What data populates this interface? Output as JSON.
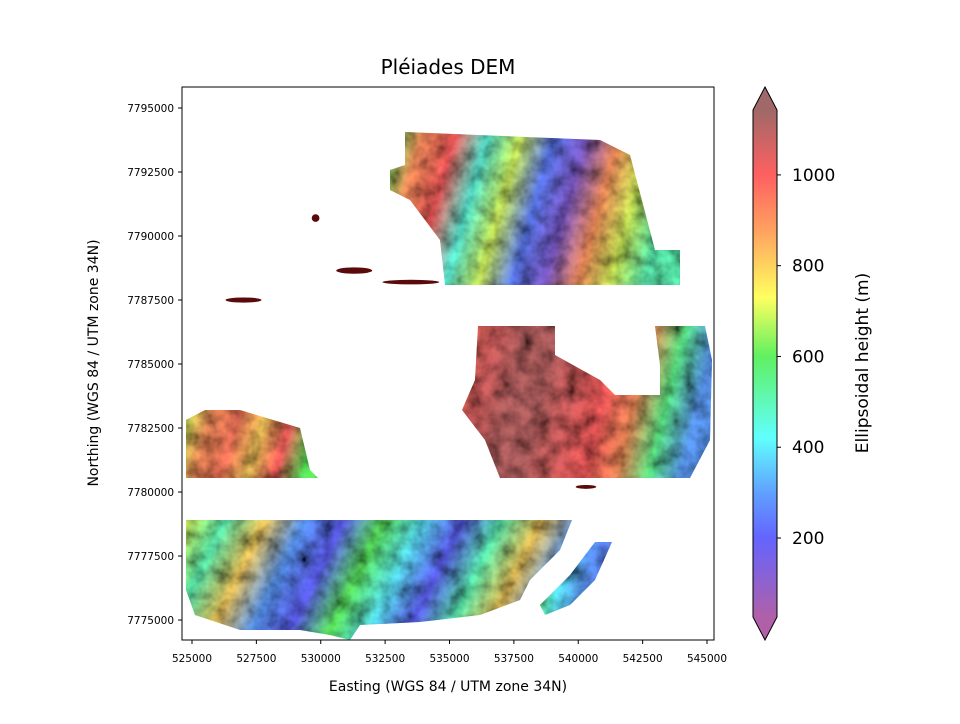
{
  "chart_data": {
    "type": "heatmap",
    "title": "Pléiades DEM",
    "xlabel": "Easting (WGS 84 / UTM zone 34N)",
    "ylabel": "Northing (WGS 84 / UTM zone 34N)",
    "xlim": [
      524612,
      545272
    ],
    "ylim": [
      7774220,
      7795820
    ],
    "xticks": [
      525000,
      527500,
      530000,
      532500,
      535000,
      537500,
      540000,
      542500,
      545000
    ],
    "yticks": [
      7775000,
      7777500,
      7780000,
      7782500,
      7785000,
      7787500,
      7790000,
      7792500,
      7795000
    ],
    "grid": false,
    "colorbar": {
      "label": "Ellipsoidal height (m)",
      "range": [
        26,
        1143
      ],
      "extend": "both",
      "ticks": [
        200,
        400,
        600,
        800,
        1000
      ],
      "colormap": [
        {
          "value": 26,
          "color": "#b060a8"
        },
        {
          "value": 200,
          "color": "#6464ff"
        },
        {
          "value": 300,
          "color": "#60a0ff"
        },
        {
          "value": 420,
          "color": "#60ffff"
        },
        {
          "value": 600,
          "color": "#60f060"
        },
        {
          "value": 730,
          "color": "#ffff60"
        },
        {
          "value": 880,
          "color": "#ffa060"
        },
        {
          "value": 1000,
          "color": "#ff6060"
        },
        {
          "value": 1143,
          "color": "#a06868"
        }
      ]
    },
    "regions": [
      {
        "name": "north-block",
        "polygon": [
          [
            533272,
            7794062
          ],
          [
            540845,
            7793750
          ],
          [
            542010,
            7793164
          ],
          [
            542981,
            7789453
          ],
          [
            543951,
            7789453
          ],
          [
            543951,
            7788086
          ],
          [
            534825,
            7788086
          ],
          [
            534631,
            7789844
          ],
          [
            533466,
            7791406
          ],
          [
            532689,
            7791797
          ],
          [
            532689,
            7792578
          ],
          [
            533272,
            7792773
          ]
        ],
        "elevation_profile": [
          600,
          900,
          1000,
          450,
          700,
          250,
          120,
          900,
          700,
          500
        ]
      },
      {
        "name": "central-east-block",
        "polygon": [
          [
            536107,
            7786484
          ],
          [
            539097,
            7786484
          ],
          [
            539097,
            7785352
          ],
          [
            540845,
            7784375
          ],
          [
            541427,
            7783789
          ],
          [
            543175,
            7783789
          ],
          [
            543175,
            7784961
          ],
          [
            542981,
            7786484
          ],
          [
            544922,
            7786484
          ],
          [
            545194,
            7785156
          ],
          [
            545117,
            7782031
          ],
          [
            544340,
            7780547
          ],
          [
            536961,
            7780547
          ],
          [
            536379,
            7782031
          ],
          [
            535485,
            7783203
          ],
          [
            535990,
            7784375
          ]
        ],
        "elevation_profile": [
          950,
          1050,
          1100,
          1100,
          1050,
          1000,
          900,
          550,
          300
        ]
      },
      {
        "name": "west-block",
        "polygon": [
          [
            524767,
            7782812
          ],
          [
            525505,
            7783203
          ],
          [
            526864,
            7783203
          ],
          [
            529194,
            7782500
          ],
          [
            529583,
            7780859
          ],
          [
            529893,
            7780547
          ],
          [
            524767,
            7780547
          ]
        ],
        "elevation_profile": [
          700,
          900,
          950,
          800,
          1000,
          600
        ]
      },
      {
        "name": "south-block",
        "polygon": [
          [
            524767,
            7778906
          ],
          [
            539757,
            7778906
          ],
          [
            539291,
            7777734
          ],
          [
            538126,
            7776563
          ],
          [
            537738,
            7775781
          ],
          [
            536184,
            7775195
          ],
          [
            533854,
            7774922
          ],
          [
            531524,
            7774805
          ],
          [
            531136,
            7774219
          ],
          [
            530359,
            7774414
          ],
          [
            529194,
            7774609
          ],
          [
            526864,
            7774609
          ],
          [
            525117,
            7775195
          ],
          [
            524767,
            7776172
          ]
        ],
        "elevation_profile": [
          700,
          500,
          800,
          300,
          200,
          600,
          400,
          200,
          500,
          800,
          300
        ]
      },
      {
        "name": "south-east-strip",
        "polygon": [
          [
            540650,
            7778047
          ],
          [
            541311,
            7778047
          ],
          [
            540650,
            7776563
          ],
          [
            539680,
            7775586
          ],
          [
            538709,
            7775195
          ],
          [
            538515,
            7775586
          ],
          [
            539680,
            7776758
          ]
        ],
        "elevation_profile": [
          600,
          400,
          300,
          250
        ]
      }
    ],
    "artifacts": [
      {
        "center": [
          527000,
          7787500
        ],
        "size": [
          1400,
          200
        ],
        "elevation": 1143
      },
      {
        "center": [
          531300,
          7788650
        ],
        "size": [
          1400,
          250
        ],
        "elevation": 1143
      },
      {
        "center": [
          533500,
          7788200
        ],
        "size": [
          2200,
          180
        ],
        "elevation": 1143
      },
      {
        "center": [
          529800,
          7790700
        ],
        "size": [
          300,
          300
        ],
        "elevation": 1143
      },
      {
        "center": [
          540300,
          7780200
        ],
        "size": [
          800,
          150
        ],
        "elevation": 1143
      }
    ]
  }
}
